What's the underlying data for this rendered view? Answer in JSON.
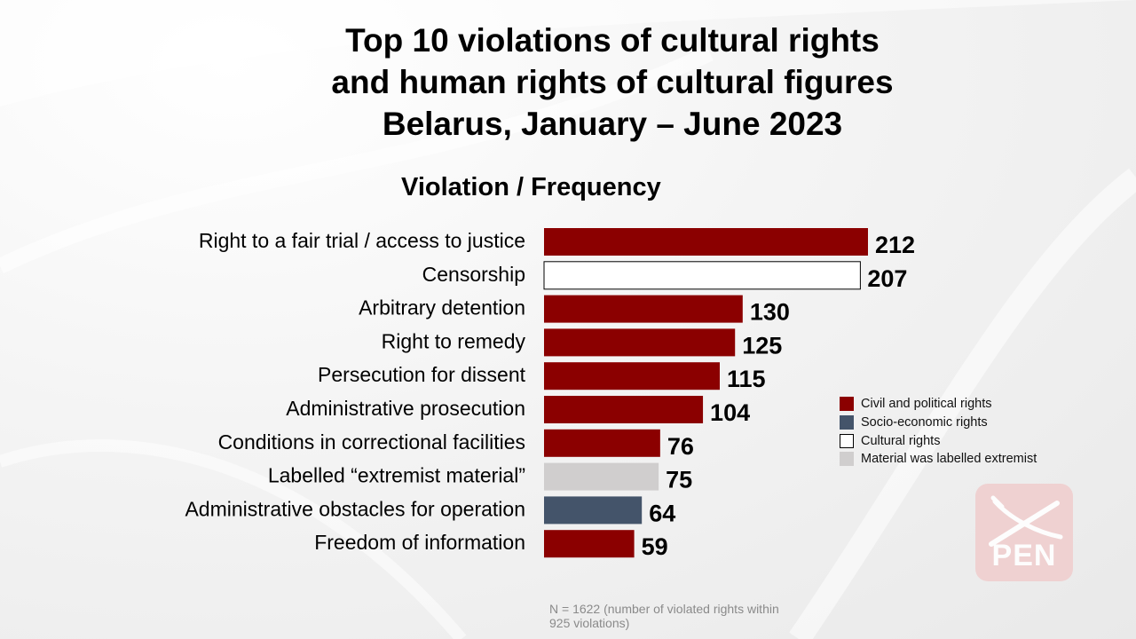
{
  "title_lines": [
    "Top 10 violations of cultural rights",
    "and human rights of cultural figures",
    "Belarus, January – June 2023"
  ],
  "subtitle": "Violation  /  Frequency",
  "colors": {
    "civil": "#8b0000",
    "socio": "#44546a",
    "cultural": "#ffffff",
    "extremist": "#d0cece"
  },
  "legend": [
    {
      "label": "Civil and political rights",
      "color": "#8b0000",
      "border": "none"
    },
    {
      "label": "Socio-economic rights",
      "color": "#44546a",
      "border": "none"
    },
    {
      "label": "Cultural rights",
      "color": "#ffffff",
      "border": "#000000"
    },
    {
      "label": "Material was labelled extremist",
      "color": "#d0cece",
      "border": "none"
    }
  ],
  "chart_data": {
    "type": "bar",
    "orientation": "horizontal",
    "title": "Top 10 violations of cultural rights and human rights of cultural figures Belarus, January – June 2023",
    "xlabel": "",
    "ylabel": "",
    "categories": [
      "Right to a fair trial / access to justice",
      "Censorship",
      "Arbitrary detention",
      "Right to remedy",
      "Persecution for dissent",
      "Administrative prosecution",
      "Conditions in correctional facilities",
      "Labelled “extremist material”",
      "Administrative obstacles for operation",
      "Freedom of information"
    ],
    "values": [
      212,
      207,
      130,
      125,
      115,
      104,
      76,
      75,
      64,
      59
    ],
    "groups": [
      "civil",
      "cultural",
      "civil",
      "civil",
      "civil",
      "civil",
      "civil",
      "extremist",
      "socio",
      "civil"
    ],
    "xlim": [
      0,
      212
    ],
    "grid": false,
    "legend_position": "right"
  },
  "note": "N = 1622 (number of violated rights within 925 violations)",
  "logo_text": "PEN"
}
